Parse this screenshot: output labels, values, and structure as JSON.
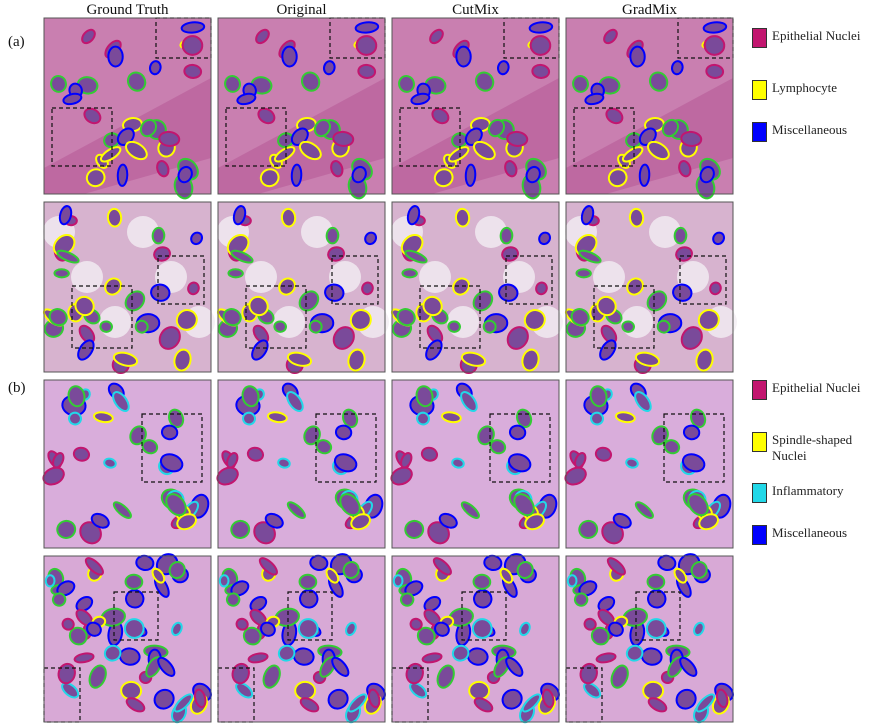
{
  "column_headers": [
    "Ground Truth",
    "Original",
    "CutMix",
    "GradMix"
  ],
  "panels": [
    {
      "label": "(a)",
      "legend": [
        {
          "label": "Epithelial Nuclei",
          "color": "#c2166f"
        },
        {
          "label": "Lymphocyte",
          "color": "#ffff00"
        },
        {
          "label": "Miscellaneous",
          "color": "#0000ff"
        }
      ]
    },
    {
      "label": "(b)",
      "legend": [
        {
          "label": "Epithelial Nuclei",
          "color": "#c2166f"
        },
        {
          "label": "Spindle-shaped Nuclei",
          "color": "#ffff00"
        },
        {
          "label": "Inflammatory",
          "color": "#22d8e8"
        },
        {
          "label": "Miscellaneous",
          "color": "#0000ff"
        }
      ]
    }
  ]
}
